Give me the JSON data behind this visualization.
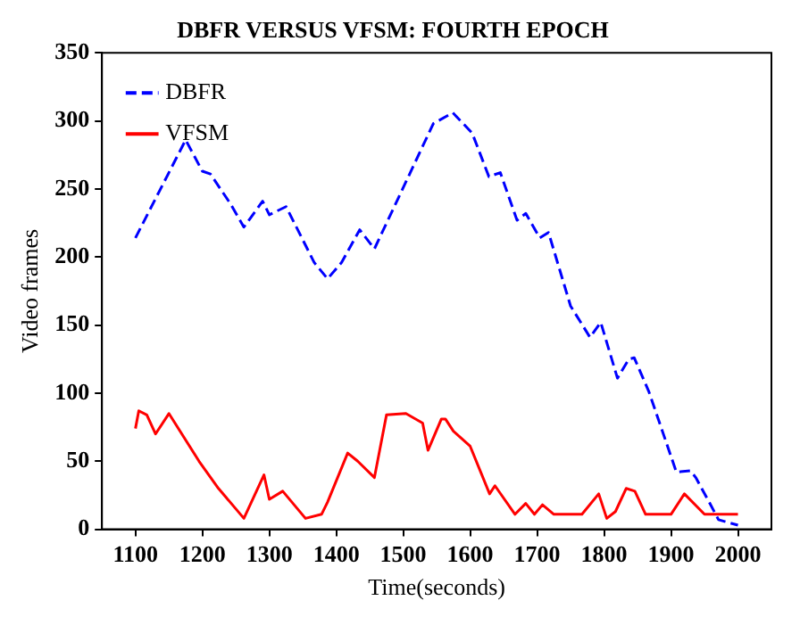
{
  "chart_data": {
    "type": "line",
    "title": "DBFR VERSUS VFSM: FOURTH EPOCH",
    "xlabel": "Time(seconds)",
    "ylabel": "Video frames",
    "xlim": [
      1050,
      2050
    ],
    "xticks": [
      1100,
      1200,
      1300,
      1400,
      1500,
      1600,
      1700,
      1800,
      1900,
      2000
    ],
    "ylim": [
      0,
      350
    ],
    "yticks": [
      0,
      50,
      100,
      150,
      200,
      250,
      300,
      350
    ],
    "grid": false,
    "legend": "top left",
    "marker": "none",
    "series": [
      {
        "name": "DBFR",
        "color": "#0000ff",
        "line_style": "dashed",
        "x": [
          1100,
          1175,
          1200,
          1212,
          1242,
          1262,
          1290,
          1300,
          1325,
          1367,
          1387,
          1408,
          1435,
          1457,
          1545,
          1574,
          1603,
          1628,
          1645,
          1670,
          1683,
          1704,
          1717,
          1750,
          1779,
          1795,
          1820,
          1837,
          1845,
          1867,
          1908,
          1929,
          1937,
          1958,
          1971,
          2000
        ],
        "values": [
          214,
          286,
          263,
          261,
          239,
          222,
          241,
          231,
          237,
          196,
          184,
          196,
          220,
          206,
          298,
          306,
          291,
          259,
          262,
          227,
          232,
          214,
          218,
          164,
          141,
          152,
          111,
          125,
          126,
          101,
          42,
          43,
          38,
          19,
          7,
          3
        ]
      },
      {
        "name": "VFSM",
        "color": "#ff0000",
        "line_style": "solid",
        "x": [
          1100,
          1105,
          1117,
          1130,
          1150,
          1195,
          1224,
          1262,
          1292,
          1300,
          1320,
          1354,
          1378,
          1387,
          1417,
          1432,
          1457,
          1475,
          1504,
          1529,
          1537,
          1557,
          1563,
          1575,
          1600,
          1629,
          1637,
          1667,
          1683,
          1696,
          1708,
          1725,
          1767,
          1792,
          1804,
          1817,
          1833,
          1846,
          1862,
          1900,
          1920,
          1950,
          2000
        ],
        "values": [
          74,
          87,
          84,
          70,
          85,
          50,
          30,
          8,
          40,
          22,
          28,
          8,
          11,
          20,
          56,
          50,
          38,
          84,
          85,
          78,
          58,
          81,
          81,
          72,
          61,
          26,
          32,
          11,
          19,
          11,
          18,
          11,
          11,
          26,
          8,
          13,
          30,
          28,
          11,
          11,
          26,
          11,
          11
        ]
      }
    ]
  }
}
